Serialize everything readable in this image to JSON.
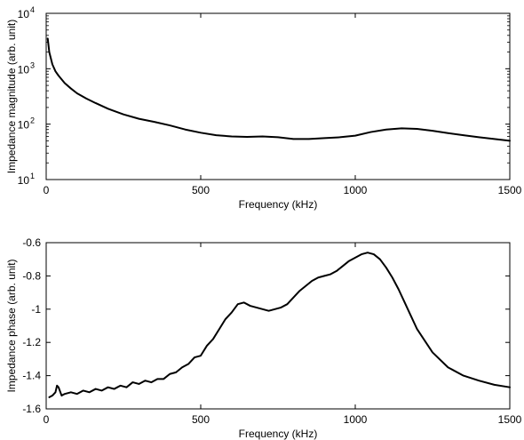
{
  "chart_data": [
    {
      "type": "line",
      "xlabel": "Frequency (kHz)",
      "ylabel": "Impedance magnitude (arb. unit)",
      "xlim": [
        0,
        1500
      ],
      "ylim": [
        10,
        10000
      ],
      "yscale": "log",
      "grid": false,
      "line_color": "#000000",
      "x_ticks": [
        {
          "value": 0,
          "label": "0"
        },
        {
          "value": 500,
          "label": "500"
        },
        {
          "value": 1000,
          "label": "1000"
        },
        {
          "value": 1500,
          "label": "1500"
        }
      ],
      "y_ticks": [
        {
          "value": 10,
          "base": "10",
          "exp": "1"
        },
        {
          "value": 100,
          "base": "10",
          "exp": "2"
        },
        {
          "value": 1000,
          "base": "10",
          "exp": "3"
        },
        {
          "value": 10000,
          "base": "10",
          "exp": "4"
        }
      ],
      "series": [
        {
          "x": [
            5,
            10,
            20,
            30,
            40,
            60,
            80,
            100,
            130,
            160,
            200,
            250,
            300,
            350,
            400,
            450,
            500,
            550,
            600,
            650,
            700,
            750,
            800,
            850,
            900,
            950,
            1000,
            1050,
            1100,
            1150,
            1200,
            1250,
            1300,
            1350,
            1400,
            1450,
            1500
          ],
          "y": [
            3500,
            2000,
            1200,
            900,
            750,
            550,
            440,
            360,
            290,
            240,
            190,
            150,
            125,
            110,
            95,
            80,
            70,
            63,
            60,
            59,
            60,
            58,
            54,
            54,
            56,
            58,
            62,
            72,
            80,
            84,
            82,
            76,
            69,
            63,
            58,
            54,
            50
          ]
        }
      ]
    },
    {
      "type": "line",
      "xlabel": "Frequency (kHz)",
      "ylabel": "Impedance phase (arb. unit)",
      "xlim": [
        0,
        1500
      ],
      "ylim": [
        -1.6,
        -0.6
      ],
      "grid": false,
      "line_color": "#000000",
      "x_ticks": [
        {
          "value": 0,
          "label": "0"
        },
        {
          "value": 500,
          "label": "500"
        },
        {
          "value": 1000,
          "label": "1000"
        },
        {
          "value": 1500,
          "label": "1500"
        }
      ],
      "y_ticks": [
        {
          "value": -1.6,
          "label": "-1.6"
        },
        {
          "value": -1.4,
          "label": "-1.4"
        },
        {
          "value": -1.2,
          "label": "-1.2"
        },
        {
          "value": -1.0,
          "label": "-1"
        },
        {
          "value": -0.8,
          "label": "-0.8"
        },
        {
          "value": -0.6,
          "label": "-0.6"
        }
      ],
      "series": [
        {
          "x": [
            10,
            20,
            30,
            35,
            40,
            50,
            60,
            80,
            100,
            120,
            140,
            160,
            180,
            200,
            220,
            240,
            260,
            280,
            300,
            320,
            340,
            360,
            380,
            400,
            420,
            440,
            460,
            480,
            500,
            520,
            540,
            560,
            580,
            600,
            620,
            640,
            660,
            680,
            700,
            720,
            740,
            760,
            780,
            800,
            820,
            840,
            860,
            880,
            900,
            920,
            940,
            960,
            980,
            1000,
            1020,
            1040,
            1060,
            1080,
            1100,
            1120,
            1140,
            1160,
            1180,
            1200,
            1250,
            1300,
            1350,
            1400,
            1450,
            1500
          ],
          "y": [
            -1.53,
            -1.52,
            -1.5,
            -1.46,
            -1.47,
            -1.52,
            -1.51,
            -1.5,
            -1.51,
            -1.49,
            -1.5,
            -1.48,
            -1.49,
            -1.47,
            -1.48,
            -1.46,
            -1.47,
            -1.44,
            -1.45,
            -1.43,
            -1.44,
            -1.42,
            -1.42,
            -1.39,
            -1.38,
            -1.35,
            -1.33,
            -1.29,
            -1.28,
            -1.22,
            -1.18,
            -1.12,
            -1.06,
            -1.02,
            -0.97,
            -0.96,
            -0.98,
            -0.99,
            -1.0,
            -1.01,
            -1.0,
            -0.99,
            -0.97,
            -0.93,
            -0.89,
            -0.86,
            -0.83,
            -0.81,
            -0.8,
            -0.79,
            -0.77,
            -0.74,
            -0.71,
            -0.69,
            -0.67,
            -0.66,
            -0.67,
            -0.7,
            -0.75,
            -0.81,
            -0.88,
            -0.96,
            -1.04,
            -1.12,
            -1.26,
            -1.35,
            -1.4,
            -1.43,
            -1.455,
            -1.47
          ]
        }
      ]
    }
  ]
}
